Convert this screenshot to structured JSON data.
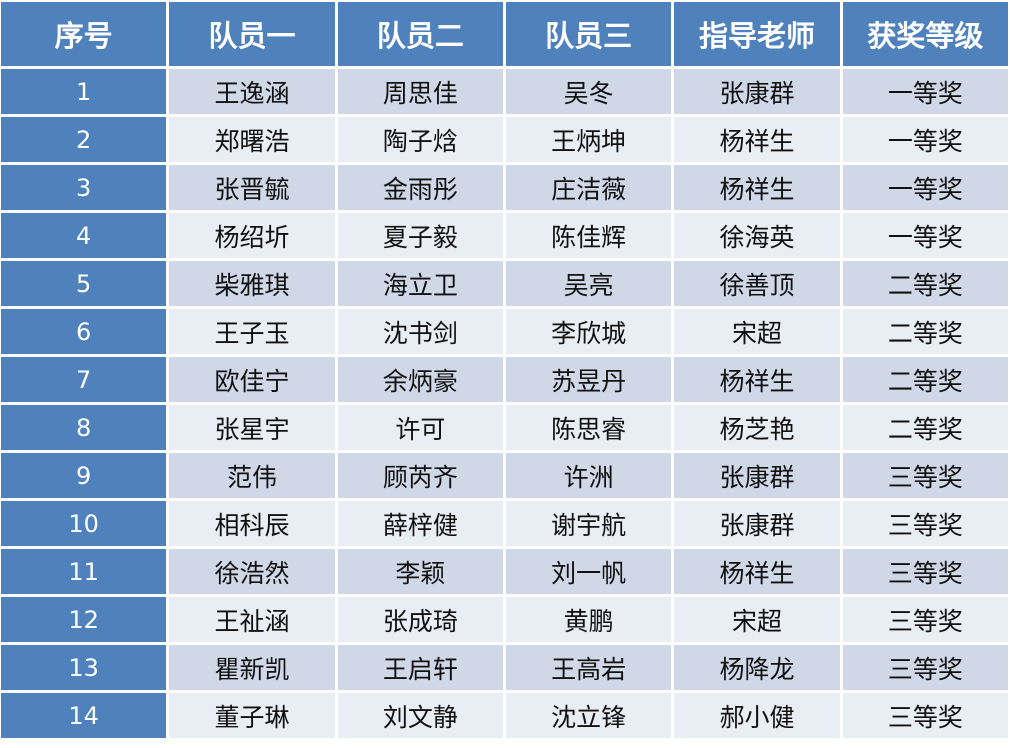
{
  "headers": [
    "序号",
    "队员一",
    "队员二",
    "队员三",
    "指导老师",
    "获奖等级"
  ],
  "rows": [
    [
      "1",
      "王逸涵",
      "周思佳",
      "吴冬",
      "张康群",
      "一等奖"
    ],
    [
      "2",
      "郑曙浩",
      "陶子焓",
      "王炳坤",
      "杨祥生",
      "一等奖"
    ],
    [
      "3",
      "张晋毓",
      "金雨彤",
      "庄洁薇",
      "杨祥生",
      "一等奖"
    ],
    [
      "4",
      "杨绍圻",
      "夏子毅",
      "陈佳辉",
      "徐海英",
      "一等奖"
    ],
    [
      "5",
      "柴雅琪",
      "海立卫",
      "吴亮",
      "徐善顶",
      "二等奖"
    ],
    [
      "6",
      "王子玉",
      "沈书剑",
      "李欣城",
      "宋超",
      "二等奖"
    ],
    [
      "7",
      "欧佳宁",
      "余炳豪",
      "苏昱丹",
      "杨祥生",
      "二等奖"
    ],
    [
      "8",
      "张星宇",
      "许可",
      "陈思睿",
      "杨芝艳",
      "二等奖"
    ],
    [
      "9",
      "范伟",
      "顾芮齐",
      "许洲",
      "张康群",
      "三等奖"
    ],
    [
      "10",
      "相科辰",
      "薛梓健",
      "谢宇航",
      "张康群",
      "三等奖"
    ],
    [
      "11",
      "徐浩然",
      "李颖",
      "刘一帆",
      "杨祥生",
      "三等奖"
    ],
    [
      "12",
      "王祉涵",
      "张成琦",
      "黄鹏",
      "宋超",
      "三等奖"
    ],
    [
      "13",
      "瞿新凯",
      "王启轩",
      "王高岩",
      "杨降龙",
      "三等奖"
    ],
    [
      "14",
      "董子琳",
      "刘文静",
      "沈立锋",
      "郝小健",
      "三等奖"
    ]
  ],
  "colors": {
    "header": "#4f81bd",
    "row_odd": "#d0d8e8",
    "row_even": "#e9edf4"
  }
}
